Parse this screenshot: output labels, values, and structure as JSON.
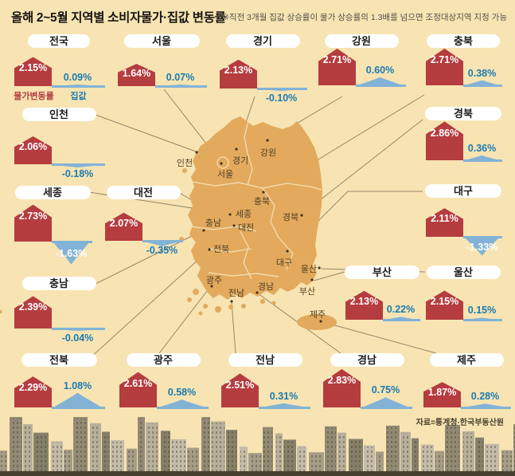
{
  "title": "올해 2~5월 지역별 소비자물가·집값 변동률",
  "note": "※직전 3개월 집값 상승률이 물가 상승률의 1.3배를 넘으면 조정대상지역 지정 가능",
  "source": "자료=통계청·한국부동산원",
  "legend": {
    "cpi": "물가변동률",
    "house": "집값"
  },
  "colors": {
    "background": "#f7e4b2",
    "cpi_red": "#b53c3f",
    "house_blue": "#82b3d6",
    "house_blue_text": "#1c7ab2",
    "map_fill": "#e3aa5d",
    "pill_bg": "#ffffff"
  },
  "chart_data": {
    "type": "bar",
    "unit": "%",
    "series_names": [
      "물가변동률",
      "집값"
    ],
    "regions": [
      {
        "id": "jeonguk",
        "label": "전국",
        "cpi": 2.15,
        "house": 0.09
      },
      {
        "id": "seoul",
        "label": "서울",
        "cpi": 1.64,
        "house": 0.07
      },
      {
        "id": "gyeonggi",
        "label": "경기",
        "cpi": 2.13,
        "house": -0.1
      },
      {
        "id": "gangwon",
        "label": "강원",
        "cpi": 2.71,
        "house": 0.6
      },
      {
        "id": "chungbuk",
        "label": "충북",
        "cpi": 2.71,
        "house": 0.38
      },
      {
        "id": "incheon",
        "label": "인천",
        "cpi": 2.06,
        "house": -0.18
      },
      {
        "id": "gyeongbuk",
        "label": "경북",
        "cpi": 2.86,
        "house": 0.36
      },
      {
        "id": "sejong",
        "label": "세종",
        "cpi": 2.73,
        "house": -1.63
      },
      {
        "id": "daejeon",
        "label": "대전",
        "cpi": 2.07,
        "house": -0.35
      },
      {
        "id": "daegu",
        "label": "대구",
        "cpi": 2.11,
        "house": -1.33
      },
      {
        "id": "chungnam",
        "label": "충남",
        "cpi": 2.39,
        "house": -0.04
      },
      {
        "id": "busan",
        "label": "부산",
        "cpi": 2.13,
        "house": 0.22
      },
      {
        "id": "ulsan",
        "label": "울산",
        "cpi": 2.15,
        "house": 0.15
      },
      {
        "id": "jeonbuk",
        "label": "전북",
        "cpi": 2.29,
        "house": 1.08
      },
      {
        "id": "gwangju",
        "label": "광주",
        "cpi": 2.61,
        "house": 0.58
      },
      {
        "id": "jeonnam",
        "label": "전남",
        "cpi": 2.51,
        "house": 0.31
      },
      {
        "id": "gyeongnam",
        "label": "경남",
        "cpi": 2.83,
        "house": 0.75
      },
      {
        "id": "jeju",
        "label": "제주",
        "cpi": 1.87,
        "house": 0.28
      }
    ]
  }
}
